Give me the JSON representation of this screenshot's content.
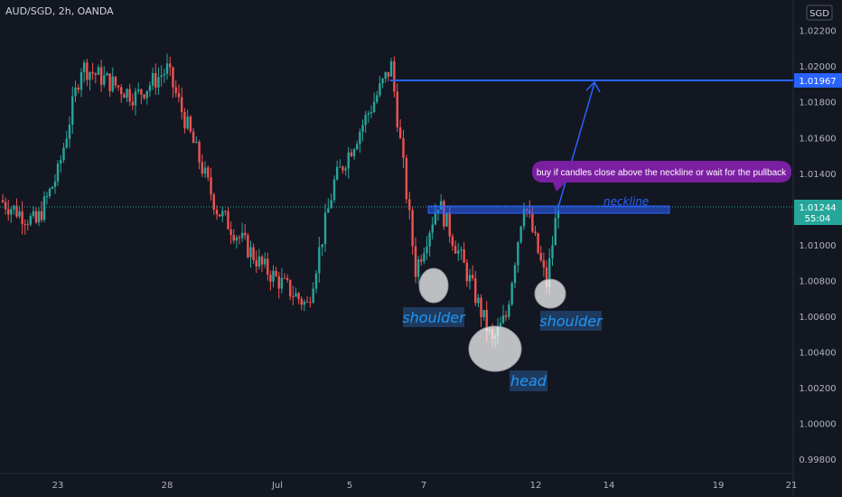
{
  "header": {
    "symbol_label": "AUD/SGD, 2h, OANDA",
    "currency_badge": "SGD"
  },
  "price_axis": {
    "labels": [
      "1.02200",
      "1.02000",
      "1.01800",
      "1.01600",
      "1.01400",
      "1.01000",
      "1.00800",
      "1.00600",
      "1.00400",
      "1.00200",
      "1.00000",
      "0.99800"
    ],
    "target_price": "1.01967",
    "current_price": "1.01244",
    "countdown": "55:04"
  },
  "time_axis": {
    "labels": [
      "23",
      "28",
      "Jul",
      "5",
      "7",
      "12",
      "14",
      "19",
      "21"
    ]
  },
  "annotations": {
    "neckline": "neckline",
    "left_shoulder": "shoulder",
    "head": "head",
    "right_shoulder": "shoulder",
    "callout": "buy if candles close above the neckline or wait for the pullback"
  },
  "chart_data": {
    "type": "candlestick",
    "title": "AUD/SGD, 2h, OANDA",
    "y_unit": "SGD",
    "ylim": [
      0.9972,
      1.0237
    ],
    "price_ticks": [
      1.022,
      1.02,
      1.018,
      1.016,
      1.014,
      1.01,
      1.008,
      1.006,
      1.004,
      1.002,
      1.0,
      0.998
    ],
    "x_ticks": [
      "23",
      "28",
      "Jul",
      "5",
      "7",
      "12",
      "14",
      "19",
      "21"
    ],
    "current_price": 1.01244,
    "target_price": 1.01967,
    "neckline_price": 1.01235,
    "pattern": "inverse head and shoulders",
    "swing_path": [
      {
        "t": "Jun 20",
        "price": 1.0125
      },
      {
        "t": "Jun 22",
        "price": 1.0112
      },
      {
        "t": "Jun 23",
        "price": 1.014
      },
      {
        "t": "Jun 25",
        "price": 1.02
      },
      {
        "t": "Jun 26",
        "price": 1.0183
      },
      {
        "t": "Jun 28",
        "price": 1.0198
      },
      {
        "t": "Jun 30",
        "price": 1.012
      },
      {
        "t": "Jul 1",
        "price": 1.0088
      },
      {
        "t": "Jul 3",
        "price": 1.0066
      },
      {
        "t": "Jul 4",
        "price": 1.0135
      },
      {
        "t": "Jul 6",
        "price": 1.02
      },
      {
        "t": "Jul 7",
        "price": 1.0086
      },
      {
        "t": "Jul 8",
        "price": 1.0124
      },
      {
        "t": "Jul 9",
        "price": 1.008
      },
      {
        "t": "Jul 10",
        "price": 1.0045
      },
      {
        "t": "Jul 11",
        "price": 1.006
      },
      {
        "t": "Jul 12",
        "price": 1.0125
      },
      {
        "t": "Jul 13",
        "price": 1.0078
      },
      {
        "t": "Jul 14",
        "price": 1.0124
      }
    ]
  },
  "colors": {
    "background": "#131722",
    "up": "#26a69a",
    "down": "#ef5350",
    "accent": "#2962ff",
    "callout": "#7b1fa2"
  }
}
